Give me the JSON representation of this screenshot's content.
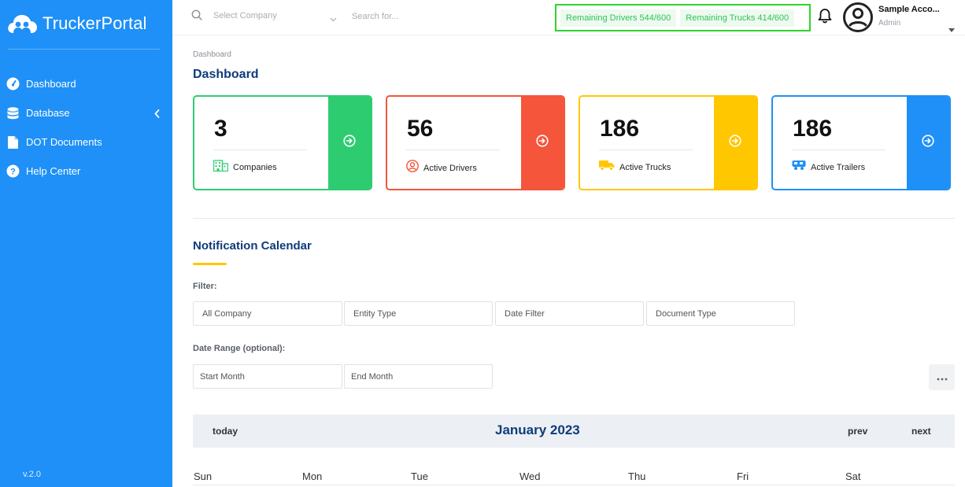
{
  "brand": {
    "name": "TruckerPortal",
    "version": "v.2.0"
  },
  "sidebar": {
    "items": [
      {
        "label": "Dashboard",
        "icon": "gauge-icon"
      },
      {
        "label": "Database",
        "icon": "database-icon"
      },
      {
        "label": "DOT Documents",
        "icon": "document-icon"
      },
      {
        "label": "Help Center",
        "icon": "help-icon"
      }
    ]
  },
  "topbar": {
    "company_placeholder": "Select Company",
    "search_placeholder": "Search for...",
    "remaining_drivers": "Remaining Drivers 544/600",
    "remaining_trucks": "Remaining Trucks 414/600",
    "user_name": "Sample Acco...",
    "user_role": "Admin"
  },
  "breadcrumb": "Dashboard",
  "page_title": "Dashboard",
  "cards": [
    {
      "value": "3",
      "label": "Companies",
      "color": "#2ecc71",
      "icon": "building-icon"
    },
    {
      "value": "56",
      "label": "Active Drivers",
      "color": "#f4553b",
      "icon": "user-circle-icon"
    },
    {
      "value": "186",
      "label": "Active Trucks",
      "color": "#ffc700",
      "icon": "truck-icon"
    },
    {
      "value": "186",
      "label": "Active Trailers",
      "color": "#1e90f7",
      "icon": "trailer-icon"
    }
  ],
  "calendar": {
    "section_title": "Notification Calendar",
    "filter_label": "Filter:",
    "filters": [
      "All Company",
      "Entity Type",
      "Date Filter",
      "Document Type"
    ],
    "range_label": "Date Range (optional):",
    "range_fields": [
      "Start Month",
      "End Month"
    ],
    "today": "today",
    "month": "January 2023",
    "prev": "prev",
    "next": "next",
    "weekdays": [
      "Sun",
      "Mon",
      "Tue",
      "Wed",
      "Thu",
      "Fri",
      "Sat"
    ]
  },
  "colors": {
    "sidebar": "#1e90f7",
    "title": "#0f3b7a",
    "accent": "#ffc700",
    "limit_text": "#2ec25a"
  }
}
